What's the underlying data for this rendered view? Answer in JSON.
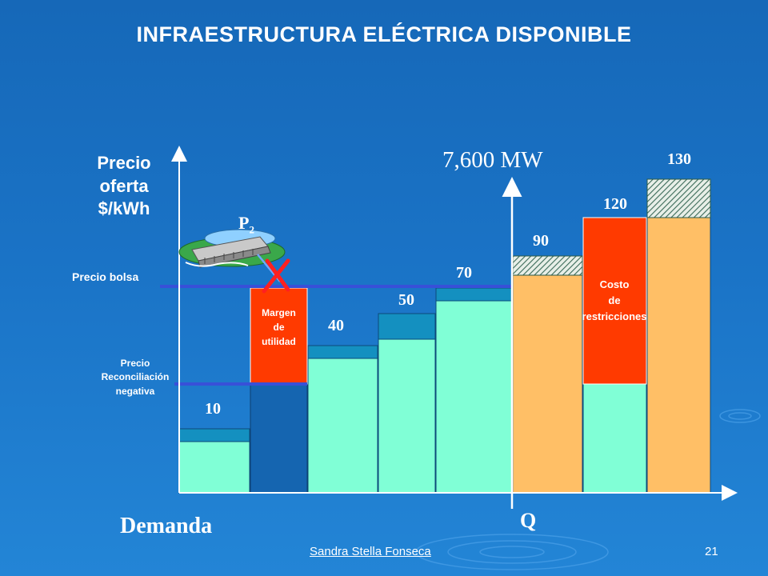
{
  "title": "INFRAESTRUCTURA ELÉCTRICA DISPONIBLE",
  "y_axis_label": [
    "Precio",
    "oferta",
    "$/kWh"
  ],
  "capacity_label": "7,600 MW",
  "x_axis_label": "Q",
  "demand_label": "Demanda",
  "plant_label": {
    "base": "P",
    "subscript": "2"
  },
  "precio_bolsa_label": "Precio bolsa",
  "precio_reconciliacion_label": [
    "Precio",
    "Reconciliación",
    "negativa"
  ],
  "margen_label": [
    "Margen",
    "de",
    "utilidad"
  ],
  "costo_label": [
    "Costo",
    "de",
    "restricciones"
  ],
  "bar_values": [
    "10",
    "40",
    "50",
    "70",
    "90",
    "120",
    "130"
  ],
  "footer": {
    "author": "Sandra Stella Fonseca",
    "page": "21"
  },
  "colors": {
    "background": "#1a73c6",
    "mint": "#80ffd6",
    "teal": "#1490c0",
    "dark_blue": "#1565b0",
    "red": "#ff3a00",
    "orange": "#ffbf66",
    "price_line": "#3850d8",
    "axis": "#ffffff",
    "x_mark": "#ff2020"
  }
}
